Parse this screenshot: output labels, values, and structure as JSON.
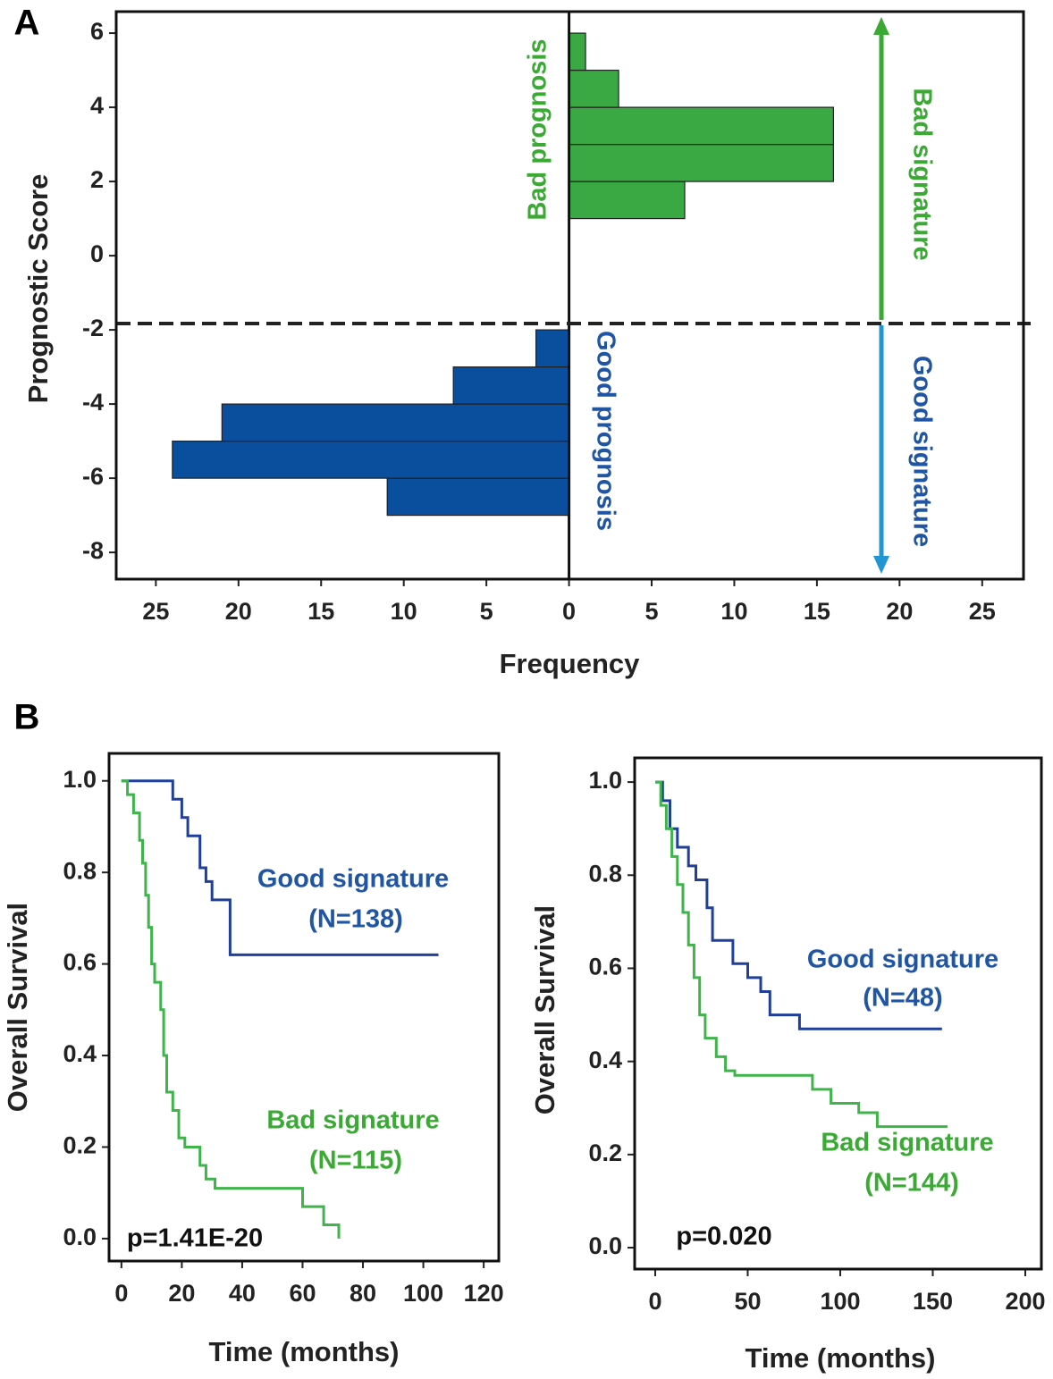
{
  "chart_data": [
    {
      "type": "histogram",
      "panel": "A",
      "ylabel": "Prognostic Score",
      "xlabel": "Frequency",
      "orientation": "horizontal",
      "xlim": [
        -27.4,
        27.5
      ],
      "xticks": [
        {
          "value": -25,
          "label": "25"
        },
        {
          "value": -20,
          "label": "20"
        },
        {
          "value": -15,
          "label": "15"
        },
        {
          "value": -10,
          "label": "10"
        },
        {
          "value": -5,
          "label": "5"
        },
        0,
        5,
        10,
        15,
        20,
        25
      ],
      "ylim": [
        -8.72,
        6.58
      ],
      "yticks": [
        -8,
        -6,
        -4,
        -2,
        0,
        2,
        4,
        6
      ],
      "series": [
        {
          "color": "#3aa843",
          "side": "right",
          "bins": [
            1,
            2,
            3,
            4,
            5,
            6
          ],
          "values": [
            7,
            16,
            16,
            3,
            1
          ]
        },
        {
          "color": "#0a4f9e",
          "side": "left",
          "bins": [
            -7,
            -6,
            -5,
            -4,
            -3,
            -2
          ],
          "values": [
            11,
            24,
            21,
            7,
            2
          ]
        }
      ],
      "threshold": -1.83,
      "arrow_colors": [
        "#3aaa35",
        "#2196d3"
      ],
      "annotations": [
        {
          "text": "Bad prognosis",
          "color": "#3aaa35"
        },
        {
          "text": "Good prognosis",
          "color": "#1f55a3"
        },
        {
          "text": "Bad signature",
          "color": "#3aaa35"
        },
        {
          "text": "Good signature",
          "color": "#1f55a3"
        }
      ]
    },
    {
      "type": "line",
      "panel": "B",
      "ylabel": "Overall Survival",
      "xlabel": "Time (months)",
      "xlim": [
        -4.1,
        125
      ],
      "xticks": [
        0,
        20,
        40,
        60,
        80,
        100,
        120
      ],
      "ylim": [
        -0.049,
        1.06
      ],
      "yticks": [
        {
          "value": 0,
          "label": "0.0"
        },
        0.2,
        0.4,
        0.6,
        0.8,
        {
          "value": 1,
          "label": "1.0"
        }
      ],
      "series": [
        {
          "color": "#1f3f99",
          "x": [
            0,
            17,
            17,
            20,
            20,
            22,
            22,
            26,
            26,
            28,
            28,
            30,
            30,
            36,
            36,
            105
          ],
          "values": [
            1,
            1,
            0.96,
            0.96,
            0.92,
            0.92,
            0.88,
            0.88,
            0.81,
            0.81,
            0.78,
            0.78,
            0.74,
            0.74,
            0.62,
            0.62
          ]
        },
        {
          "color": "#3fb44a",
          "x": [
            0,
            2,
            2,
            4,
            4,
            6,
            6,
            7,
            7,
            8,
            8,
            9,
            9,
            10,
            10,
            11,
            11,
            13,
            13,
            14,
            14,
            15,
            15,
            17,
            17,
            19,
            19,
            21,
            21,
            26,
            26,
            28,
            28,
            31,
            31,
            60,
            60,
            67,
            67,
            72,
            72
          ],
          "values": [
            1,
            1,
            0.97,
            0.97,
            0.93,
            0.93,
            0.87,
            0.87,
            0.82,
            0.82,
            0.75,
            0.75,
            0.68,
            0.68,
            0.6,
            0.6,
            0.56,
            0.56,
            0.5,
            0.5,
            0.4,
            0.4,
            0.32,
            0.32,
            0.28,
            0.28,
            0.22,
            0.22,
            0.2,
            0.2,
            0.16,
            0.16,
            0.13,
            0.13,
            0.11,
            0.11,
            0.07,
            0.07,
            0.03,
            0.03,
            0
          ]
        }
      ],
      "annotations": [
        {
          "text": "Good signature",
          "color": "#1f55a3"
        },
        {
          "text": "(N=138)",
          "color": "#1f55a3"
        },
        {
          "text": "Bad signature",
          "color": "#3aaa35"
        },
        {
          "text": "(N=115)",
          "color": "#3aaa35"
        },
        {
          "text": "p=1.41E-20",
          "color": "#111111"
        }
      ]
    },
    {
      "type": "line",
      "ylabel": "Overall Survival",
      "xlabel": "Time (months)",
      "xlim": [
        -11.1,
        208.7
      ],
      "xticks": [
        0,
        50,
        100,
        150,
        200
      ],
      "ylim": [
        -0.046,
        1.052
      ],
      "yticks": [
        {
          "value": 0,
          "label": "0.0"
        },
        0.2,
        0.4,
        0.6,
        0.8,
        {
          "value": 1,
          "label": "1.0"
        }
      ],
      "series": [
        {
          "color": "#1f3f99",
          "x": [
            0,
            4,
            4,
            8,
            8,
            12,
            12,
            18,
            18,
            22,
            22,
            28,
            28,
            31,
            31,
            42,
            42,
            50,
            50,
            57,
            57,
            62,
            62,
            78,
            78,
            155
          ],
          "values": [
            1,
            1,
            0.96,
            0.96,
            0.9,
            0.9,
            0.86,
            0.86,
            0.82,
            0.82,
            0.79,
            0.79,
            0.73,
            0.73,
            0.66,
            0.66,
            0.61,
            0.61,
            0.58,
            0.58,
            0.55,
            0.55,
            0.5,
            0.5,
            0.47,
            0.47
          ]
        },
        {
          "color": "#3fb44a",
          "x": [
            0,
            3,
            3,
            6,
            6,
            9,
            9,
            12,
            12,
            15,
            15,
            18,
            18,
            21,
            21,
            24,
            24,
            27,
            27,
            33,
            33,
            38,
            38,
            43,
            43,
            85,
            85,
            95,
            95,
            110,
            110,
            120,
            120,
            158
          ],
          "values": [
            1,
            1,
            0.95,
            0.95,
            0.9,
            0.9,
            0.84,
            0.84,
            0.78,
            0.78,
            0.72,
            0.72,
            0.65,
            0.65,
            0.58,
            0.58,
            0.5,
            0.5,
            0.45,
            0.45,
            0.41,
            0.41,
            0.38,
            0.38,
            0.37,
            0.37,
            0.34,
            0.34,
            0.31,
            0.31,
            0.29,
            0.29,
            0.26,
            0.26
          ]
        }
      ],
      "annotations": [
        {
          "text": "Good signature",
          "color": "#1f55a3"
        },
        {
          "text": "(N=48)",
          "color": "#1f55a3"
        },
        {
          "text": "Bad signature",
          "color": "#3aaa35"
        },
        {
          "text": "(N=144)",
          "color": "#3aaa35"
        },
        {
          "text": "p=0.020",
          "color": "#111111"
        }
      ]
    }
  ]
}
